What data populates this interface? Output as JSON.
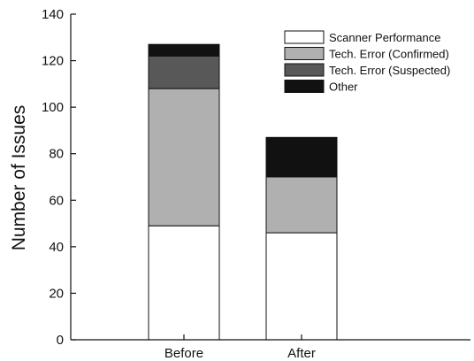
{
  "chart_data": {
    "type": "bar",
    "stacked": true,
    "title": "",
    "xlabel": "",
    "ylabel": "Number of Issues",
    "ylim": [
      0,
      140
    ],
    "yticks": [
      0,
      20,
      40,
      60,
      80,
      100,
      120,
      140
    ],
    "grid": false,
    "legend_position": "top-right",
    "categories": [
      "Before",
      "After"
    ],
    "series": [
      {
        "name": "Scanner Performance",
        "color": "#ffffff",
        "values": [
          49,
          46
        ]
      },
      {
        "name": "Tech. Error (Confirmed)",
        "color": "#b0b0b0",
        "values": [
          59,
          24
        ]
      },
      {
        "name": "Tech. Error (Suspected)",
        "color": "#585858",
        "values": [
          14,
          0
        ]
      },
      {
        "name": "Other",
        "color": "#111111",
        "values": [
          5,
          17
        ]
      }
    ]
  }
}
